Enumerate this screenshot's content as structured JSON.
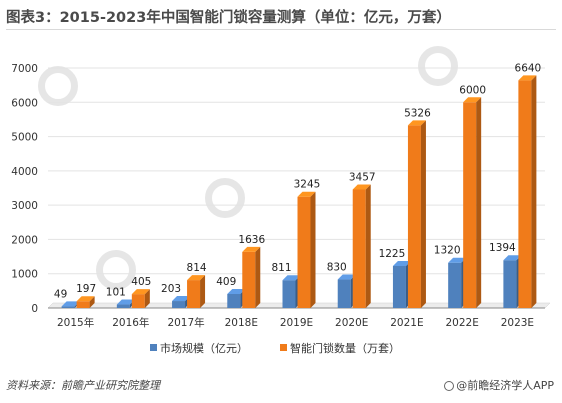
{
  "title": "图表3：2015-2023年中国智能门锁容量测算（单位：亿元，万套）",
  "footer": {
    "source": "资料来源：前瞻产业研究院整理",
    "brand": "@前瞻经济学人APP"
  },
  "colors": {
    "series1": "#4f81bd",
    "series2": "#f07b1a",
    "grid": "#e3e3e3",
    "axis": "#888888"
  },
  "chart_data": {
    "type": "bar",
    "categories": [
      "2015年",
      "2016年",
      "2017年",
      "2018E",
      "2019E",
      "2020E",
      "2021E",
      "2022E",
      "2023E"
    ],
    "series": [
      {
        "name": "市场规模（亿元）",
        "values": [
          49,
          101,
          203,
          409,
          811,
          830,
          1225,
          1320,
          1394
        ]
      },
      {
        "name": "智能门锁数量（万套）",
        "values": [
          197,
          405,
          814,
          1636,
          3245,
          3457,
          5326,
          6000,
          6640
        ]
      }
    ],
    "yticks": [
      "0",
      "1000",
      "2000",
      "3000",
      "4000",
      "5000",
      "6000",
      "7000"
    ],
    "ylim": [
      0,
      7000
    ],
    "legend": "bottom",
    "grid": true
  }
}
